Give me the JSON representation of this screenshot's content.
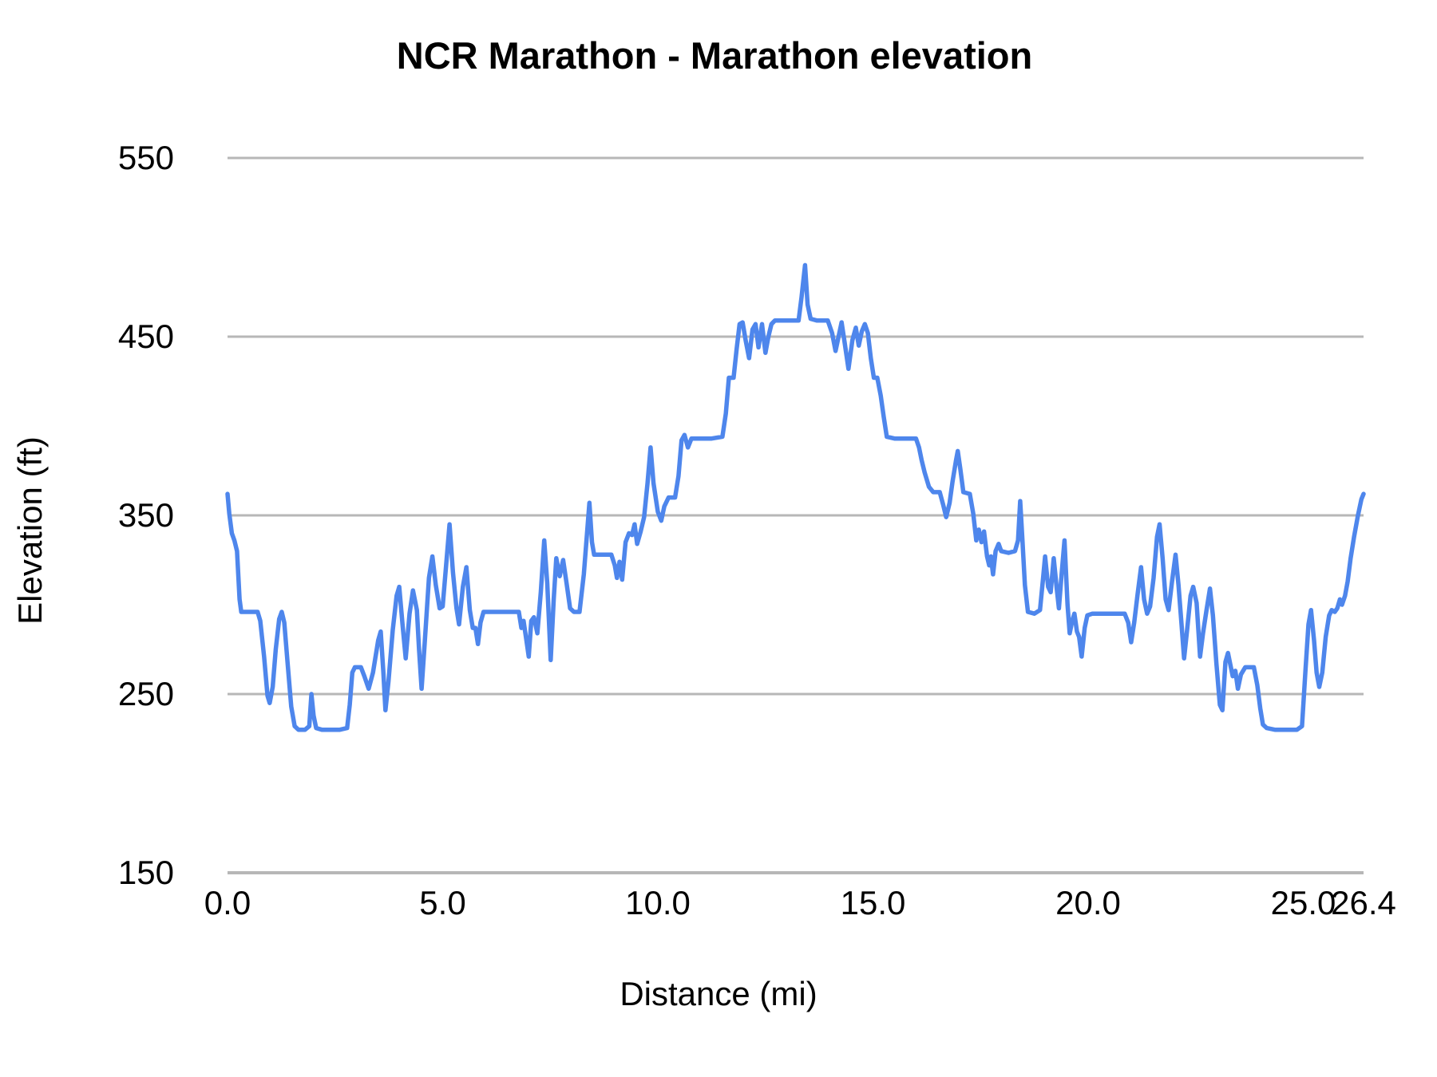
{
  "chart_data": {
    "type": "line",
    "title": "NCR Marathon - Marathon elevation",
    "xlabel": "Distance (mi)",
    "ylabel": "Elevation (ft)",
    "xlim": [
      0,
      26.4
    ],
    "ylim": [
      150,
      550
    ],
    "grid": "horizontal",
    "legend": "none",
    "gridline_color": "#b7b7b7",
    "line_color": "#4e86ec",
    "x_ticks": [
      {
        "value": 0,
        "label": "0.0"
      },
      {
        "value": 5,
        "label": "5.0"
      },
      {
        "value": 10,
        "label": "10.0"
      },
      {
        "value": 15,
        "label": "15.0"
      },
      {
        "value": 20,
        "label": "20.0"
      },
      {
        "value": 25,
        "label": "25.0"
      },
      {
        "value": 26.4,
        "label": "26.4"
      }
    ],
    "y_ticks": [
      {
        "value": 150,
        "label": "150"
      },
      {
        "value": 250,
        "label": "250"
      },
      {
        "value": 350,
        "label": "350"
      },
      {
        "value": 450,
        "label": "450"
      },
      {
        "value": 550,
        "label": "550"
      }
    ],
    "series": [
      {
        "name": "Marathon elevation",
        "points": [
          [
            0,
            362
          ],
          [
            0.04,
            351
          ],
          [
            0.1,
            340
          ],
          [
            0.16,
            336
          ],
          [
            0.22,
            330
          ],
          [
            0.28,
            303
          ],
          [
            0.32,
            296
          ],
          [
            0.5,
            296
          ],
          [
            0.7,
            296
          ],
          [
            0.76,
            291
          ],
          [
            0.85,
            271
          ],
          [
            0.93,
            249
          ],
          [
            0.98,
            245
          ],
          [
            1.05,
            254
          ],
          [
            1.12,
            275
          ],
          [
            1.2,
            292
          ],
          [
            1.26,
            296
          ],
          [
            1.32,
            290
          ],
          [
            1.4,
            266
          ],
          [
            1.48,
            243
          ],
          [
            1.56,
            232
          ],
          [
            1.65,
            230
          ],
          [
            1.8,
            230
          ],
          [
            1.9,
            232
          ],
          [
            1.95,
            250
          ],
          [
            2,
            238
          ],
          [
            2.06,
            231
          ],
          [
            2.2,
            230
          ],
          [
            2.4,
            230
          ],
          [
            2.6,
            230
          ],
          [
            2.78,
            231
          ],
          [
            2.84,
            244
          ],
          [
            2.9,
            262
          ],
          [
            2.96,
            265
          ],
          [
            3.1,
            265
          ],
          [
            3.18,
            260
          ],
          [
            3.28,
            253
          ],
          [
            3.38,
            262
          ],
          [
            3.5,
            280
          ],
          [
            3.56,
            285
          ],
          [
            3.62,
            263
          ],
          [
            3.67,
            241
          ],
          [
            3.74,
            257
          ],
          [
            3.84,
            286
          ],
          [
            3.93,
            305
          ],
          [
            3.99,
            310
          ],
          [
            4.07,
            288
          ],
          [
            4.14,
            270
          ],
          [
            4.23,
            295
          ],
          [
            4.31,
            308
          ],
          [
            4.4,
            297
          ],
          [
            4.45,
            275
          ],
          [
            4.51,
            253
          ],
          [
            4.58,
            278
          ],
          [
            4.68,
            315
          ],
          [
            4.76,
            327
          ],
          [
            4.84,
            311
          ],
          [
            4.93,
            298
          ],
          [
            5,
            299
          ],
          [
            5.08,
            322
          ],
          [
            5.16,
            345
          ],
          [
            5.24,
            318
          ],
          [
            5.32,
            298
          ],
          [
            5.38,
            289
          ],
          [
            5.47,
            310
          ],
          [
            5.55,
            321
          ],
          [
            5.63,
            297
          ],
          [
            5.7,
            287
          ],
          [
            5.76,
            287
          ],
          [
            5.82,
            278
          ],
          [
            5.88,
            290
          ],
          [
            5.95,
            296
          ],
          [
            6.2,
            296
          ],
          [
            6.5,
            296
          ],
          [
            6.77,
            296
          ],
          [
            6.83,
            287
          ],
          [
            6.88,
            291
          ],
          [
            6.94,
            281
          ],
          [
            7,
            271
          ],
          [
            7.06,
            291
          ],
          [
            7.12,
            293
          ],
          [
            7.2,
            284
          ],
          [
            7.28,
            307
          ],
          [
            7.36,
            336
          ],
          [
            7.43,
            312
          ],
          [
            7.51,
            269
          ],
          [
            7.58,
            303
          ],
          [
            7.64,
            326
          ],
          [
            7.72,
            316
          ],
          [
            7.8,
            325
          ],
          [
            7.88,
            312
          ],
          [
            7.96,
            298
          ],
          [
            8.05,
            296
          ],
          [
            8.18,
            296
          ],
          [
            8.28,
            317
          ],
          [
            8.41,
            357
          ],
          [
            8.47,
            335
          ],
          [
            8.52,
            328
          ],
          [
            8.7,
            328
          ],
          [
            8.92,
            328
          ],
          [
            9,
            322
          ],
          [
            9.05,
            315
          ],
          [
            9.11,
            324
          ],
          [
            9.17,
            314
          ],
          [
            9.25,
            335
          ],
          [
            9.33,
            340
          ],
          [
            9.4,
            339
          ],
          [
            9.46,
            345
          ],
          [
            9.52,
            334
          ],
          [
            9.6,
            341
          ],
          [
            9.68,
            349
          ],
          [
            9.76,
            368
          ],
          [
            9.83,
            388
          ],
          [
            9.9,
            368
          ],
          [
            10,
            352
          ],
          [
            10.08,
            347
          ],
          [
            10.15,
            355
          ],
          [
            10.25,
            360
          ],
          [
            10.4,
            360
          ],
          [
            10.48,
            372
          ],
          [
            10.55,
            392
          ],
          [
            10.62,
            395
          ],
          [
            10.7,
            388
          ],
          [
            10.78,
            393
          ],
          [
            11,
            393
          ],
          [
            11.25,
            393
          ],
          [
            11.5,
            394
          ],
          [
            11.58,
            407
          ],
          [
            11.65,
            427
          ],
          [
            11.76,
            427
          ],
          [
            11.83,
            443
          ],
          [
            11.9,
            457
          ],
          [
            11.97,
            458
          ],
          [
            12.04,
            448
          ],
          [
            12.12,
            438
          ],
          [
            12.2,
            454
          ],
          [
            12.27,
            457
          ],
          [
            12.34,
            444
          ],
          [
            12.42,
            457
          ],
          [
            12.5,
            441
          ],
          [
            12.57,
            450
          ],
          [
            12.64,
            457
          ],
          [
            12.72,
            459
          ],
          [
            12.9,
            459
          ],
          [
            13.1,
            459
          ],
          [
            13.27,
            459
          ],
          [
            13.34,
            472
          ],
          [
            13.42,
            490
          ],
          [
            13.48,
            468
          ],
          [
            13.55,
            460
          ],
          [
            13.7,
            459
          ],
          [
            13.95,
            459
          ],
          [
            14.05,
            452
          ],
          [
            14.13,
            442
          ],
          [
            14.2,
            450
          ],
          [
            14.27,
            458
          ],
          [
            14.34,
            447
          ],
          [
            14.43,
            432
          ],
          [
            14.52,
            448
          ],
          [
            14.6,
            455
          ],
          [
            14.67,
            445
          ],
          [
            14.74,
            453
          ],
          [
            14.81,
            457
          ],
          [
            14.88,
            452
          ],
          [
            14.95,
            438
          ],
          [
            15.02,
            427
          ],
          [
            15.1,
            427
          ],
          [
            15.18,
            417
          ],
          [
            15.25,
            405
          ],
          [
            15.32,
            394
          ],
          [
            15.5,
            393
          ],
          [
            15.75,
            393
          ],
          [
            16,
            393
          ],
          [
            16.07,
            388
          ],
          [
            16.13,
            381
          ],
          [
            16.2,
            374
          ],
          [
            16.3,
            366
          ],
          [
            16.4,
            363
          ],
          [
            16.55,
            363
          ],
          [
            16.63,
            356
          ],
          [
            16.7,
            349
          ],
          [
            16.78,
            357
          ],
          [
            16.85,
            369
          ],
          [
            16.93,
            381
          ],
          [
            16.97,
            386
          ],
          [
            17.03,
            376
          ],
          [
            17.1,
            363
          ],
          [
            17.25,
            362
          ],
          [
            17.33,
            351
          ],
          [
            17.4,
            336
          ],
          [
            17.46,
            342
          ],
          [
            17.52,
            335
          ],
          [
            17.58,
            341
          ],
          [
            17.65,
            327
          ],
          [
            17.7,
            322
          ],
          [
            17.74,
            327
          ],
          [
            17.79,
            317
          ],
          [
            17.85,
            330
          ],
          [
            17.92,
            334
          ],
          [
            17.98,
            330
          ],
          [
            18.15,
            329
          ],
          [
            18.3,
            330
          ],
          [
            18.37,
            336
          ],
          [
            18.42,
            358
          ],
          [
            18.47,
            337
          ],
          [
            18.53,
            311
          ],
          [
            18.6,
            296
          ],
          [
            18.75,
            295
          ],
          [
            18.88,
            297
          ],
          [
            18.95,
            314
          ],
          [
            19,
            327
          ],
          [
            19.07,
            310
          ],
          [
            19.13,
            307
          ],
          [
            19.2,
            326
          ],
          [
            19.27,
            309
          ],
          [
            19.32,
            298
          ],
          [
            19.38,
            316
          ],
          [
            19.45,
            336
          ],
          [
            19.52,
            300
          ],
          [
            19.57,
            284
          ],
          [
            19.63,
            291
          ],
          [
            19.68,
            295
          ],
          [
            19.74,
            285
          ],
          [
            19.79,
            282
          ],
          [
            19.85,
            271
          ],
          [
            19.92,
            287
          ],
          [
            19.98,
            294
          ],
          [
            20.1,
            295
          ],
          [
            20.35,
            295
          ],
          [
            20.6,
            295
          ],
          [
            20.85,
            295
          ],
          [
            20.93,
            290
          ],
          [
            21,
            279
          ],
          [
            21.07,
            290
          ],
          [
            21.15,
            306
          ],
          [
            21.23,
            321
          ],
          [
            21.3,
            303
          ],
          [
            21.37,
            295
          ],
          [
            21.44,
            299
          ],
          [
            21.52,
            315
          ],
          [
            21.6,
            338
          ],
          [
            21.66,
            345
          ],
          [
            21.73,
            326
          ],
          [
            21.8,
            303
          ],
          [
            21.87,
            297
          ],
          [
            21.95,
            313
          ],
          [
            22.03,
            328
          ],
          [
            22.1,
            311
          ],
          [
            22.17,
            289
          ],
          [
            22.23,
            270
          ],
          [
            22.3,
            286
          ],
          [
            22.38,
            305
          ],
          [
            22.44,
            310
          ],
          [
            22.52,
            301
          ],
          [
            22.6,
            271
          ],
          [
            22.67,
            284
          ],
          [
            22.75,
            297
          ],
          [
            22.83,
            309
          ],
          [
            22.9,
            294
          ],
          [
            22.98,
            267
          ],
          [
            23.06,
            244
          ],
          [
            23.12,
            241
          ],
          [
            23.19,
            268
          ],
          [
            23.25,
            273
          ],
          [
            23.3,
            267
          ],
          [
            23.36,
            260
          ],
          [
            23.42,
            263
          ],
          [
            23.48,
            253
          ],
          [
            23.55,
            261
          ],
          [
            23.65,
            265
          ],
          [
            23.85,
            265
          ],
          [
            23.93,
            255
          ],
          [
            24,
            242
          ],
          [
            24.06,
            233
          ],
          [
            24.15,
            231
          ],
          [
            24.35,
            230
          ],
          [
            24.6,
            230
          ],
          [
            24.85,
            230
          ],
          [
            24.97,
            232
          ],
          [
            25.05,
            263
          ],
          [
            25.12,
            289
          ],
          [
            25.18,
            297
          ],
          [
            25.25,
            280
          ],
          [
            25.31,
            262
          ],
          [
            25.37,
            254
          ],
          [
            25.44,
            262
          ],
          [
            25.52,
            282
          ],
          [
            25.6,
            294
          ],
          [
            25.66,
            297
          ],
          [
            25.73,
            296
          ],
          [
            25.79,
            298
          ],
          [
            25.85,
            303
          ],
          [
            25.9,
            300
          ],
          [
            25.97,
            305
          ],
          [
            26.03,
            313
          ],
          [
            26.1,
            326
          ],
          [
            26.18,
            338
          ],
          [
            26.27,
            350
          ],
          [
            26.35,
            359
          ],
          [
            26.4,
            362
          ]
        ]
      }
    ]
  }
}
